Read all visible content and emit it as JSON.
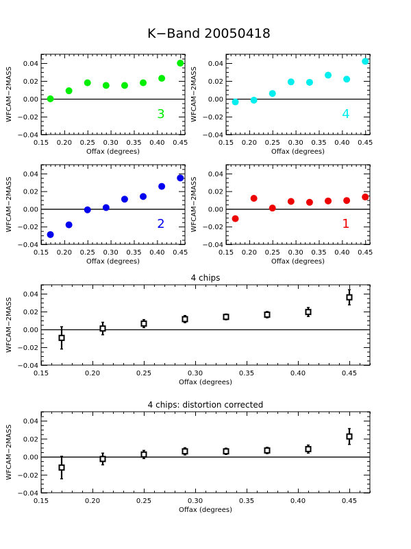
{
  "figure": {
    "title": "K−Band 20050418"
  },
  "chart_data": [
    {
      "id": "chip3",
      "type": "scatter",
      "title": "",
      "annotation": "3",
      "color": "#00ee00",
      "marker": "filled-circle",
      "xlabel": "Offax (degrees)",
      "ylabel": "WFCAM−2MASS",
      "xlim": [
        0.15,
        0.46
      ],
      "ylim": [
        -0.04,
        0.05
      ],
      "xticks": [
        0.15,
        0.2,
        0.25,
        0.3,
        0.35,
        0.4,
        0.45
      ],
      "xtick_labels": [
        "0.15",
        "0.20",
        "0.25",
        "0.30",
        "0.35",
        "0.40",
        "0.45"
      ],
      "yticks": [
        0.04,
        0.02,
        0.0,
        -0.02,
        -0.04
      ],
      "ytick_labels": [
        "0.04",
        "0.02",
        "0.00",
        "−0.02",
        "−0.04"
      ],
      "zero_line": true,
      "x": [
        0.17,
        0.21,
        0.25,
        0.29,
        0.33,
        0.37,
        0.41,
        0.45
      ],
      "y": [
        0.0,
        0.009,
        0.018,
        0.015,
        0.015,
        0.018,
        0.023,
        0.04
      ]
    },
    {
      "id": "chip4",
      "type": "scatter",
      "title": "",
      "annotation": "4",
      "color": "#00eeee",
      "marker": "filled-circle",
      "xlabel": "Offax (degrees)",
      "ylabel": "WFCAM−2MASS",
      "xlim": [
        0.15,
        0.46
      ],
      "ylim": [
        -0.04,
        0.05
      ],
      "xticks": [
        0.15,
        0.2,
        0.25,
        0.3,
        0.35,
        0.4,
        0.45
      ],
      "xtick_labels": [
        "0.15",
        "0.20",
        "0.25",
        "0.30",
        "0.35",
        "0.40",
        "0.45"
      ],
      "yticks": [
        0.04,
        0.02,
        0.0,
        -0.02,
        -0.04
      ],
      "ytick_labels": [
        "0.04",
        "0.02",
        "0.00",
        "−0.02",
        "−0.04"
      ],
      "zero_line": true,
      "x": [
        0.17,
        0.21,
        0.25,
        0.29,
        0.33,
        0.37,
        0.41,
        0.45
      ],
      "y": [
        -0.0035,
        -0.0015,
        0.006,
        0.019,
        0.0185,
        0.0265,
        0.022,
        0.042
      ]
    },
    {
      "id": "chip2",
      "type": "scatter",
      "title": "",
      "annotation": "2",
      "color": "#0000ee",
      "marker": "filled-circle",
      "xlabel": "Offax (degrees)",
      "ylabel": "WFCAM−2MASS",
      "xlim": [
        0.15,
        0.46
      ],
      "ylim": [
        -0.04,
        0.05
      ],
      "xticks": [
        0.15,
        0.2,
        0.25,
        0.3,
        0.35,
        0.4,
        0.45
      ],
      "xtick_labels": [
        "0.15",
        "0.20",
        "0.25",
        "0.30",
        "0.35",
        "0.40",
        "0.45"
      ],
      "yticks": [
        0.04,
        0.02,
        0.0,
        -0.02,
        -0.04
      ],
      "ytick_labels": [
        "0.04",
        "0.02",
        "0.00",
        "−0.02",
        "−0.04"
      ],
      "zero_line": true,
      "x": [
        0.17,
        0.21,
        0.25,
        0.29,
        0.33,
        0.37,
        0.41,
        0.45
      ],
      "y": [
        -0.029,
        -0.018,
        -0.001,
        0.0015,
        0.011,
        0.014,
        0.0255,
        0.035
      ]
    },
    {
      "id": "chip1",
      "type": "scatter",
      "title": "",
      "annotation": "1",
      "color": "#ee0000",
      "marker": "filled-circle",
      "xlabel": "Offax (degrees)",
      "ylabel": "WFCAM−2MASS",
      "xlim": [
        0.15,
        0.46
      ],
      "ylim": [
        -0.04,
        0.05
      ],
      "xticks": [
        0.15,
        0.2,
        0.25,
        0.3,
        0.35,
        0.4,
        0.45
      ],
      "xtick_labels": [
        "0.15",
        "0.20",
        "0.25",
        "0.30",
        "0.35",
        "0.40",
        "0.45"
      ],
      "yticks": [
        0.04,
        0.02,
        0.0,
        -0.02,
        -0.04
      ],
      "ytick_labels": [
        "0.04",
        "0.02",
        "0.00",
        "−0.02",
        "−0.04"
      ],
      "zero_line": true,
      "x": [
        0.17,
        0.21,
        0.25,
        0.29,
        0.33,
        0.37,
        0.41,
        0.45
      ],
      "y": [
        -0.011,
        0.012,
        0.001,
        0.0085,
        0.0075,
        0.009,
        0.0095,
        0.0135
      ]
    },
    {
      "id": "all4",
      "type": "scatter",
      "title": "4 chips",
      "annotation": "",
      "color": "#000000",
      "marker": "open-square-errorbar",
      "xlabel": "Offax (degrees)",
      "ylabel": "WFCAM−2MASS",
      "xlim": [
        0.15,
        0.47
      ],
      "ylim": [
        -0.04,
        0.05
      ],
      "xticks": [
        0.15,
        0.2,
        0.25,
        0.3,
        0.35,
        0.4,
        0.45
      ],
      "xtick_labels": [
        "0.15",
        "0.20",
        "0.25",
        "0.30",
        "0.35",
        "0.40",
        "0.45"
      ],
      "yticks": [
        0.04,
        0.02,
        0.0,
        -0.02,
        -0.04
      ],
      "ytick_labels": [
        "0.04",
        "0.02",
        "0.00",
        "−0.02",
        "−0.04"
      ],
      "zero_line": true,
      "x": [
        0.17,
        0.21,
        0.25,
        0.29,
        0.33,
        0.37,
        0.41,
        0.45
      ],
      "y": [
        -0.0095,
        0.001,
        0.0065,
        0.0115,
        0.014,
        0.0165,
        0.0195,
        0.036
      ],
      "yerr": [
        0.0125,
        0.007,
        0.0045,
        0.004,
        0.0032,
        0.0035,
        0.005,
        0.0085
      ]
    },
    {
      "id": "all4corr",
      "type": "scatter",
      "title": "4 chips: distortion corrected",
      "annotation": "",
      "color": "#000000",
      "marker": "open-square-errorbar",
      "xlabel": "Offax (degrees)",
      "ylabel": "WFCAM−2MASS",
      "xlim": [
        0.15,
        0.47
      ],
      "ylim": [
        -0.04,
        0.05
      ],
      "xticks": [
        0.15,
        0.2,
        0.25,
        0.3,
        0.35,
        0.4,
        0.45
      ],
      "xtick_labels": [
        "0.15",
        "0.20",
        "0.25",
        "0.30",
        "0.35",
        "0.40",
        "0.45"
      ],
      "yticks": [
        0.04,
        0.02,
        0.0,
        -0.02,
        -0.04
      ],
      "ytick_labels": [
        "0.04",
        "0.02",
        "0.00",
        "−0.02",
        "−0.04"
      ],
      "zero_line": true,
      "x": [
        0.17,
        0.21,
        0.25,
        0.29,
        0.33,
        0.37,
        0.41,
        0.45
      ],
      "y": [
        -0.012,
        -0.0025,
        0.0025,
        0.006,
        0.006,
        0.007,
        0.0085,
        0.0225
      ],
      "yerr": [
        0.0125,
        0.0065,
        0.0045,
        0.004,
        0.0035,
        0.0035,
        0.0045,
        0.0088
      ]
    }
  ]
}
